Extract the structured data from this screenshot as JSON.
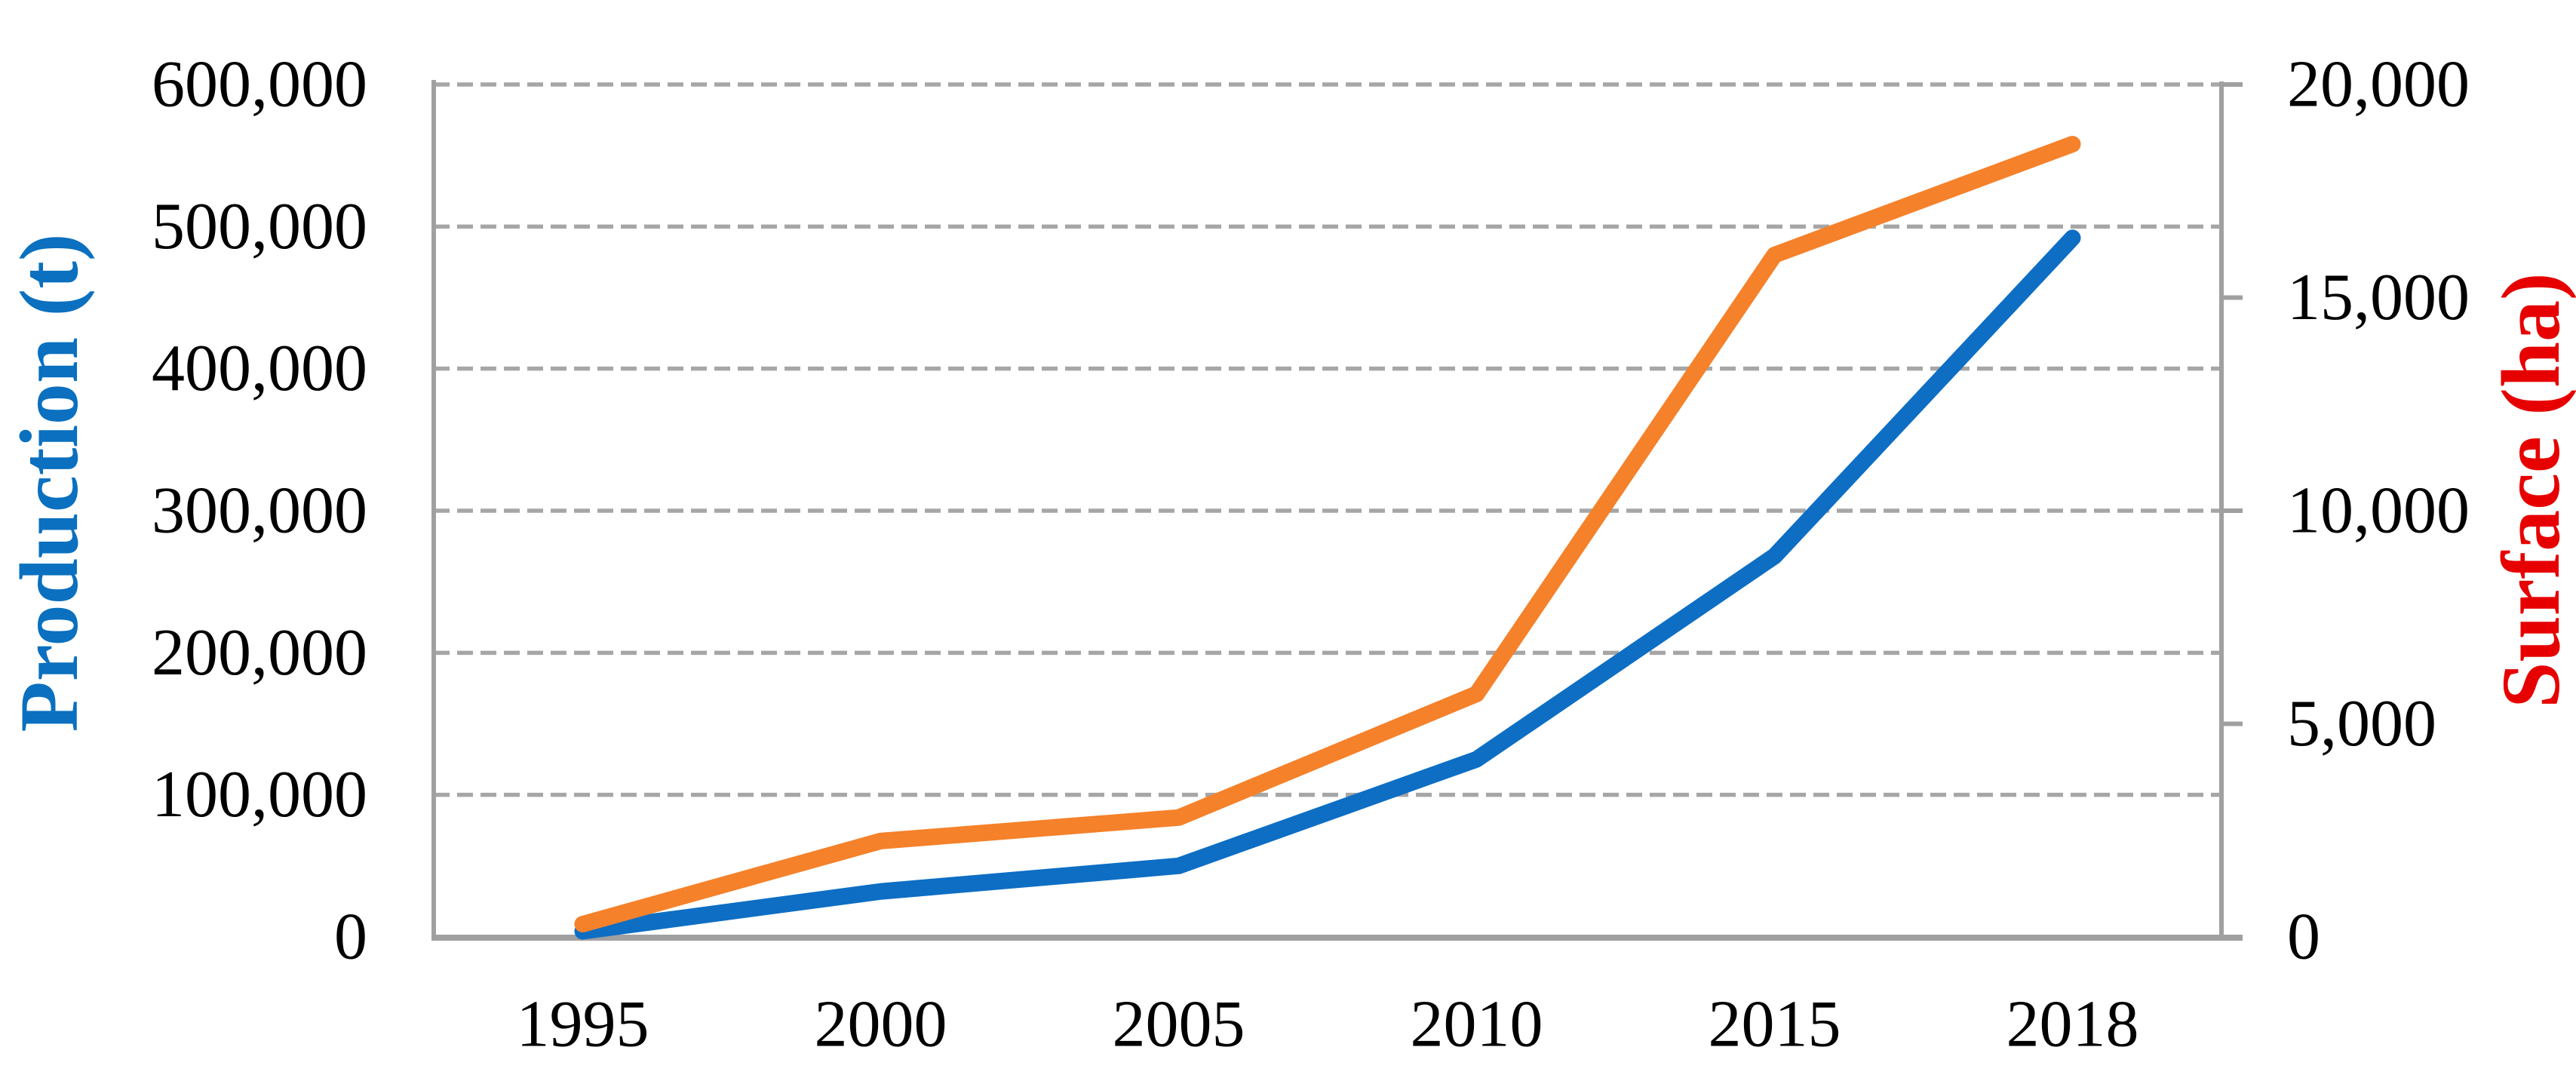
{
  "chart_data": {
    "type": "line",
    "title": "",
    "categories": [
      "1995",
      "2000",
      "2005",
      "2010",
      "2015",
      "2018"
    ],
    "series": [
      {
        "name": "Production (t)",
        "axis": "left",
        "color": "#0D6EC4",
        "values": [
          4000,
          32000,
          50000,
          125000,
          268000,
          492000
        ]
      },
      {
        "name": "Surface (ha)",
        "axis": "right",
        "color": "#F5812A",
        "values": [
          300,
          2250,
          2800,
          5700,
          16000,
          18600
        ]
      }
    ],
    "left_axis": {
      "title": "Production (t)",
      "title_color": "#0A70BF",
      "min": 0,
      "max": 600000,
      "tick_step": 100000,
      "tick_labels": [
        "0",
        "100,000",
        "200,000",
        "300,000",
        "400,000",
        "500,000",
        "600,000"
      ]
    },
    "right_axis": {
      "title": "Surface (ha)",
      "title_color": "#E60000",
      "min": 0,
      "max": 20000,
      "tick_step": 5000,
      "tick_labels": [
        "0",
        "5,000",
        "10,000",
        "15,000",
        "20,000"
      ]
    },
    "grid": {
      "horizontal": true,
      "style": "dashed"
    },
    "legend_position": "none",
    "colors": {
      "gridline": "#A6A6A6",
      "axis_line": "#A0A0A0",
      "tick_label": "#000000"
    }
  }
}
